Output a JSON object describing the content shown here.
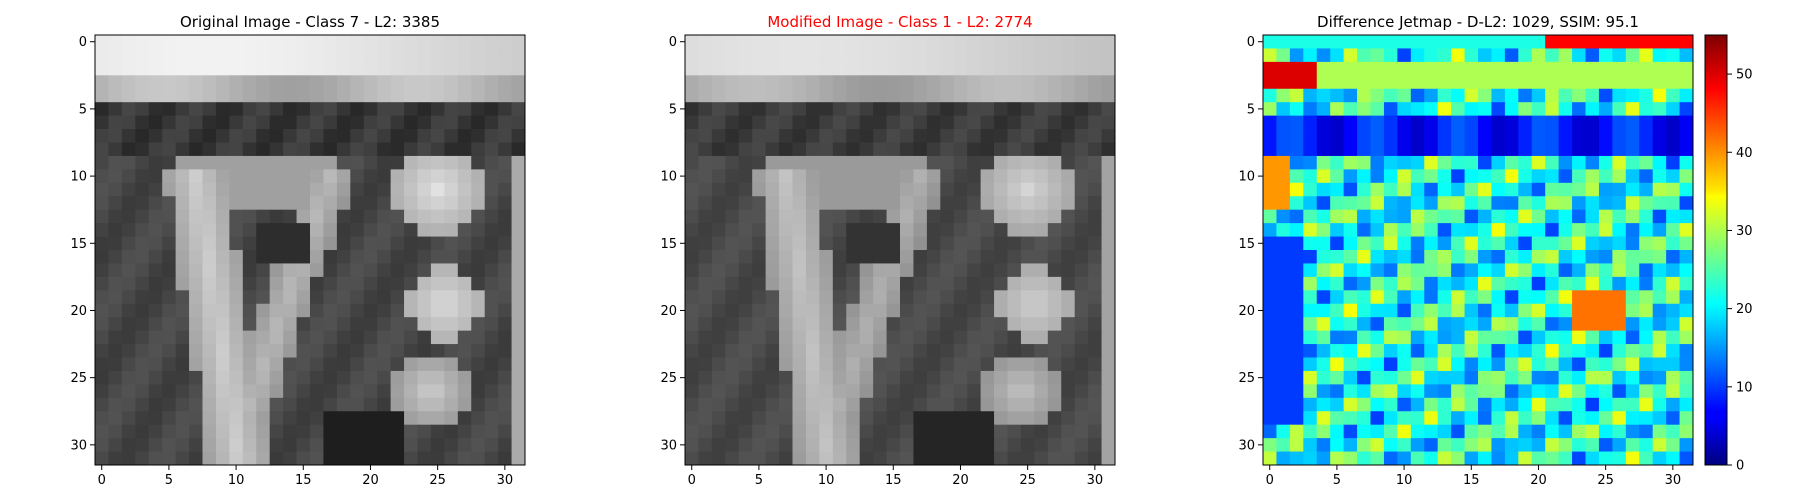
{
  "chart_data": [
    {
      "type": "heatmap",
      "title": "Original Image - Class 7 - L2: 3385",
      "title_color": "#000000",
      "colormap": "gray",
      "rows": 32,
      "cols": 32,
      "x_ticks": [
        "0",
        "5",
        "10",
        "15",
        "20",
        "25",
        "30"
      ],
      "y_ticks": [
        "0",
        "5",
        "10",
        "15",
        "20",
        "25",
        "30"
      ],
      "xlim": [
        -0.5,
        31.5
      ],
      "ylim": [
        31.5,
        -0.5
      ]
    },
    {
      "type": "heatmap",
      "title": "Modified Image - Class 1 - L2: 2774",
      "title_color": "#ff0000",
      "colormap": "gray",
      "rows": 32,
      "cols": 32,
      "x_ticks": [
        "0",
        "5",
        "10",
        "15",
        "20",
        "25",
        "30"
      ],
      "y_ticks": [
        "0",
        "5",
        "10",
        "15",
        "20",
        "25",
        "30"
      ],
      "xlim": [
        -0.5,
        31.5
      ],
      "ylim": [
        31.5,
        -0.5
      ]
    },
    {
      "type": "heatmap",
      "title": "Difference Jetmap - D-L2: 1029, SSIM: 95.1",
      "title_color": "#000000",
      "colormap": "jet",
      "rows": 32,
      "cols": 32,
      "x_ticks": [
        "0",
        "5",
        "10",
        "15",
        "20",
        "25",
        "30"
      ],
      "y_ticks": [
        "0",
        "5",
        "10",
        "15",
        "20",
        "25",
        "30"
      ],
      "xlim": [
        -0.5,
        31.5
      ],
      "ylim": [
        31.5,
        -0.5
      ],
      "colorbar": {
        "range": [
          0,
          55
        ],
        "ticks": [
          "0",
          "10",
          "20",
          "30",
          "40",
          "50"
        ]
      }
    }
  ]
}
